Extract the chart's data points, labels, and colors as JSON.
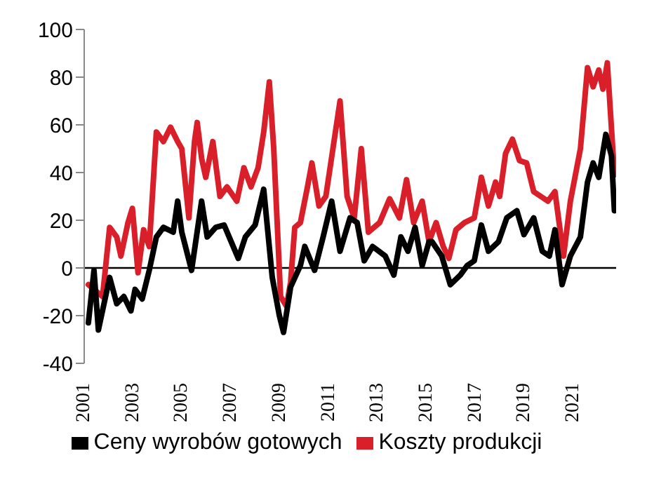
{
  "chart_data": {
    "type": "line",
    "xlim": [
      2001,
      2022.75
    ],
    "xticks": [
      2001,
      2003,
      2005,
      2007,
      2009,
      2011,
      2013,
      2015,
      2017,
      2019,
      2021
    ],
    "ylim": [
      -40,
      100
    ],
    "yticks": [
      -40,
      -20,
      0,
      20,
      40,
      60,
      80,
      100
    ],
    "grid": false,
    "legend": "bottom",
    "marker": "none",
    "line_style": "solid",
    "ref_lines": [
      {
        "axis": "y",
        "value": 0,
        "color": "#000000"
      }
    ],
    "series": [
      {
        "name": "Koszty produkcji",
        "color": "#d9202a",
        "x": [
          2001.17,
          2001.4,
          2001.75,
          2002.04,
          2002.33,
          2002.5,
          2002.79,
          2002.97,
          2003.2,
          2003.43,
          2003.66,
          2003.95,
          2004.24,
          2004.53,
          2004.82,
          2004.99,
          2005.28,
          2005.51,
          2005.62,
          2005.8,
          2005.97,
          2006.26,
          2006.55,
          2006.84,
          2007.24,
          2007.53,
          2007.82,
          2008.11,
          2008.34,
          2008.57,
          2008.75,
          2009.03,
          2009.27,
          2009.44,
          2009.61,
          2009.84,
          2010.13,
          2010.31,
          2010.6,
          2010.88,
          2011.17,
          2011.46,
          2011.75,
          2012.04,
          2012.33,
          2012.62,
          2013.08,
          2013.49,
          2013.89,
          2014.18,
          2014.47,
          2014.82,
          2015.1,
          2015.39,
          2015.68,
          2015.91,
          2016.2,
          2016.55,
          2016.95,
          2017.24,
          2017.53,
          2017.82,
          2017.99,
          2018.23,
          2018.51,
          2018.8,
          2019.09,
          2019.38,
          2019.67,
          2019.96,
          2020.25,
          2020.6,
          2020.88,
          2021.29,
          2021.58,
          2021.81,
          2022.04,
          2022.21,
          2022.39,
          2022.68
        ],
        "values": [
          -7,
          -9,
          -12,
          17,
          13,
          5,
          19,
          25,
          -2,
          16,
          9,
          57,
          53,
          59,
          53,
          50,
          21,
          53,
          61,
          46,
          38,
          53,
          30,
          34,
          28,
          42,
          34,
          42,
          57,
          78,
          50,
          -12,
          -16,
          -6,
          17,
          19,
          34,
          44,
          26,
          30,
          50,
          70,
          30,
          21,
          50,
          15,
          19,
          29,
          21,
          37,
          19,
          28,
          11,
          19,
          9,
          4,
          16,
          19,
          21,
          38,
          26,
          36,
          30,
          48,
          54,
          45,
          44,
          32,
          30,
          28,
          32,
          5,
          28,
          50,
          84,
          76,
          83,
          75,
          86,
          39
        ]
      },
      {
        "name": "Ceny wyrobów gotowych",
        "color": "#000000",
        "x": [
          2001.17,
          2001.4,
          2001.58,
          2002.04,
          2002.33,
          2002.62,
          2002.91,
          2003.08,
          2003.37,
          2003.66,
          2003.95,
          2004.24,
          2004.64,
          2004.82,
          2004.99,
          2005.39,
          2005.8,
          2006.03,
          2006.38,
          2006.72,
          2007.01,
          2007.3,
          2007.59,
          2007.99,
          2008.34,
          2008.69,
          2008.98,
          2009.15,
          2009.44,
          2009.84,
          2010.02,
          2010.42,
          2010.77,
          2011.12,
          2011.46,
          2011.87,
          2012.16,
          2012.45,
          2012.79,
          2013.31,
          2013.66,
          2013.95,
          2014.24,
          2014.53,
          2014.82,
          2015.1,
          2015.22,
          2015.62,
          2015.97,
          2016.38,
          2016.66,
          2016.95,
          2017.24,
          2017.53,
          2017.94,
          2018.28,
          2018.69,
          2018.98,
          2019.38,
          2019.73,
          2020.02,
          2020.25,
          2020.54,
          2020.88,
          2021.29,
          2021.58,
          2021.81,
          2022.04,
          2022.33,
          2022.56,
          2022.68
        ],
        "values": [
          -23,
          -1,
          -26,
          -4,
          -15,
          -12,
          -18,
          -9,
          -13,
          -1,
          13,
          17,
          15,
          28,
          15,
          -1,
          28,
          13,
          17,
          18,
          11,
          4,
          13,
          18,
          33,
          -4,
          -20,
          -27,
          -8,
          1,
          9,
          -1,
          13,
          28,
          7,
          21,
          19,
          3,
          9,
          5,
          -3,
          13,
          7,
          17,
          1,
          11,
          11,
          5,
          -7,
          -3,
          1,
          3,
          18,
          7,
          11,
          21,
          24,
          14,
          21,
          7,
          5,
          16,
          -7,
          5,
          13,
          36,
          44,
          38,
          56,
          47,
          24
        ]
      }
    ]
  }
}
